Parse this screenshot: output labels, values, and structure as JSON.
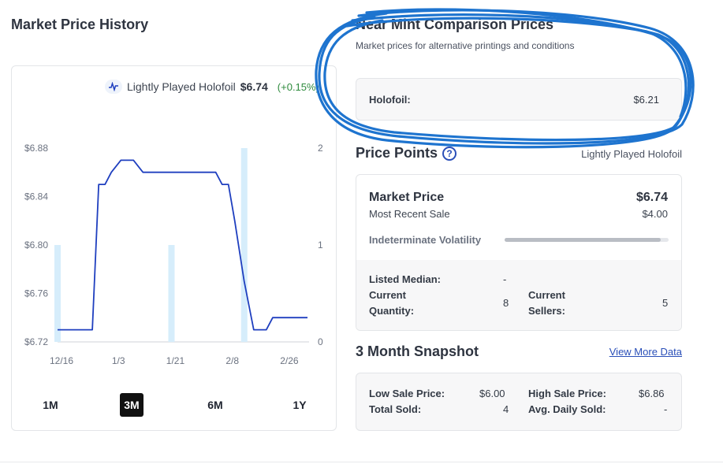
{
  "market_price_history": {
    "title": "Market Price History",
    "legend": {
      "label": "Lightly Played Holofoil",
      "price": "$6.74",
      "change": "(+0.15%)"
    },
    "range_buttons": [
      "1M",
      "3M",
      "6M",
      "1Y"
    ],
    "active_range": "3M"
  },
  "chart_data": {
    "type": "line",
    "title": "",
    "xlabel": "",
    "ylabel": "",
    "x_tick_labels": [
      "12/16",
      "1/3",
      "1/21",
      "2/8",
      "2/26"
    ],
    "y_tick_labels": [
      "$6.88",
      "$6.84",
      "$6.80",
      "$6.76",
      "$6.72"
    ],
    "y2_tick_labels": [
      "2",
      "1",
      "0"
    ],
    "ylim": [
      6.72,
      6.88
    ],
    "y2lim": [
      0,
      2
    ],
    "series": [
      {
        "name": "Lightly Played Holofoil",
        "kind": "line",
        "color": "#1f3fbf",
        "points": [
          [
            0,
            6.73
          ],
          [
            6,
            6.73
          ],
          [
            11,
            6.73
          ],
          [
            13,
            6.85
          ],
          [
            15,
            6.85
          ],
          [
            17,
            6.86
          ],
          [
            20,
            6.87
          ],
          [
            24,
            6.87
          ],
          [
            27,
            6.86
          ],
          [
            36,
            6.86
          ],
          [
            50,
            6.86
          ],
          [
            52,
            6.85
          ],
          [
            54,
            6.85
          ],
          [
            56,
            6.82
          ],
          [
            59,
            6.77
          ],
          [
            62,
            6.73
          ],
          [
            66,
            6.73
          ],
          [
            68,
            6.74
          ],
          [
            79,
            6.74
          ]
        ]
      },
      {
        "name": "",
        "kind": "bar",
        "axis": "right",
        "color": "#d6edfb",
        "points": [
          [
            0,
            1
          ],
          [
            36,
            1
          ],
          [
            59,
            2
          ]
        ]
      }
    ],
    "x_range_days": [
      0,
      79
    ],
    "x_tick_days": [
      0,
      18,
      36,
      54,
      72
    ]
  },
  "near_mint": {
    "title": "Near Mint Comparison Prices",
    "subtitle": "Market prices for alternative printings and conditions",
    "rows": [
      {
        "label": "Holofoil:",
        "value": "$6.21"
      }
    ],
    "annotation_color": "#1e74cf"
  },
  "price_points": {
    "title": "Price Points",
    "condition": "Lightly Played Holofoil",
    "market_price_label": "Market Price",
    "market_price_value": "$6.74",
    "recent_sale_label": "Most Recent Sale",
    "recent_sale_value": "$4.00",
    "volatility_label": "Indeterminate Volatility",
    "volatility_level": 0.95,
    "listed_median_label": "Listed Median:",
    "listed_median_value": "-",
    "current_quantity_label_1": "Current",
    "current_quantity_label_2": "Quantity:",
    "current_quantity_value": "8",
    "current_sellers_label_1": "Current",
    "current_sellers_label_2": "Sellers:",
    "current_sellers_value": "5"
  },
  "snapshot": {
    "title": "3 Month Snapshot",
    "view_more": "View More Data",
    "low_sale_label": "Low Sale Price:",
    "low_sale_value": "$6.00",
    "high_sale_label": "High Sale Price:",
    "high_sale_value": "$6.86",
    "total_sold_label": "Total Sold:",
    "total_sold_value": "4",
    "avg_daily_label": "Avg. Daily Sold:",
    "avg_daily_value": "-"
  }
}
